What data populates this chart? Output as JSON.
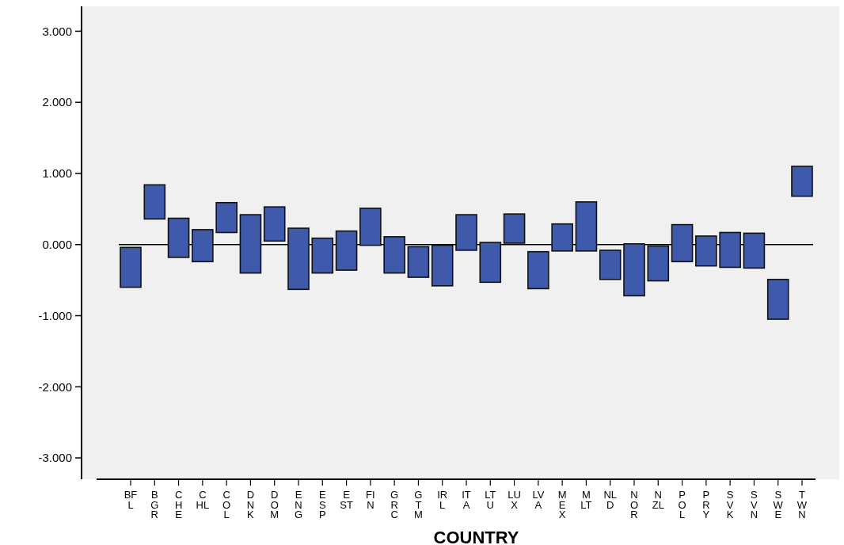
{
  "chart_data": {
    "type": "bar",
    "xlabel": "COUNTRY",
    "categories": [
      "BFL",
      "BGR",
      "CHE",
      "CHL",
      "COL",
      "DNK",
      "DOM",
      "ENG",
      "ESP",
      "EST",
      "FIN",
      "GRC",
      "GTM",
      "IRL",
      "ITA",
      "LTU",
      "LUX",
      "LVA",
      "MEX",
      "MLT",
      "NLD",
      "NOR",
      "NZL",
      "POL",
      "PRY",
      "SVK",
      "SVN",
      "SWE",
      "TWN"
    ],
    "base": [
      -0.6,
      0.36,
      -0.18,
      -0.24,
      0.17,
      -0.4,
      0.05,
      -0.63,
      -0.4,
      -0.36,
      -0.01,
      -0.4,
      -0.46,
      -0.58,
      -0.08,
      -0.53,
      0.02,
      -0.62,
      -0.09,
      -0.09,
      -0.49,
      -0.72,
      -0.51,
      -0.24,
      -0.3,
      -0.32,
      -0.33,
      -1.05,
      0.68
    ],
    "values": [
      0.56,
      0.48,
      0.55,
      0.45,
      0.42,
      0.82,
      0.48,
      0.86,
      0.49,
      0.55,
      0.52,
      0.51,
      0.43,
      0.57,
      0.5,
      0.56,
      0.41,
      0.52,
      0.38,
      0.69,
      0.41,
      0.73,
      0.49,
      0.52,
      0.42,
      0.49,
      0.49,
      0.56,
      0.42
    ],
    "color": "#3f5aab",
    "ylim": [
      -3.3,
      3.35
    ],
    "yticks": [
      {
        "value": -3,
        "label": "-3.000"
      },
      {
        "value": -2,
        "label": "-2.000"
      },
      {
        "value": -1,
        "label": "-1.000"
      },
      {
        "value": 0,
        "label": "0.000"
      },
      {
        "value": 1,
        "label": "1.000"
      },
      {
        "value": 2,
        "label": "2.000"
      },
      {
        "value": 3,
        "label": "3.000"
      }
    ],
    "ref_lines": [
      {
        "axis": "y",
        "value": 0,
        "color": "#000000"
      }
    ],
    "grid": false
  }
}
